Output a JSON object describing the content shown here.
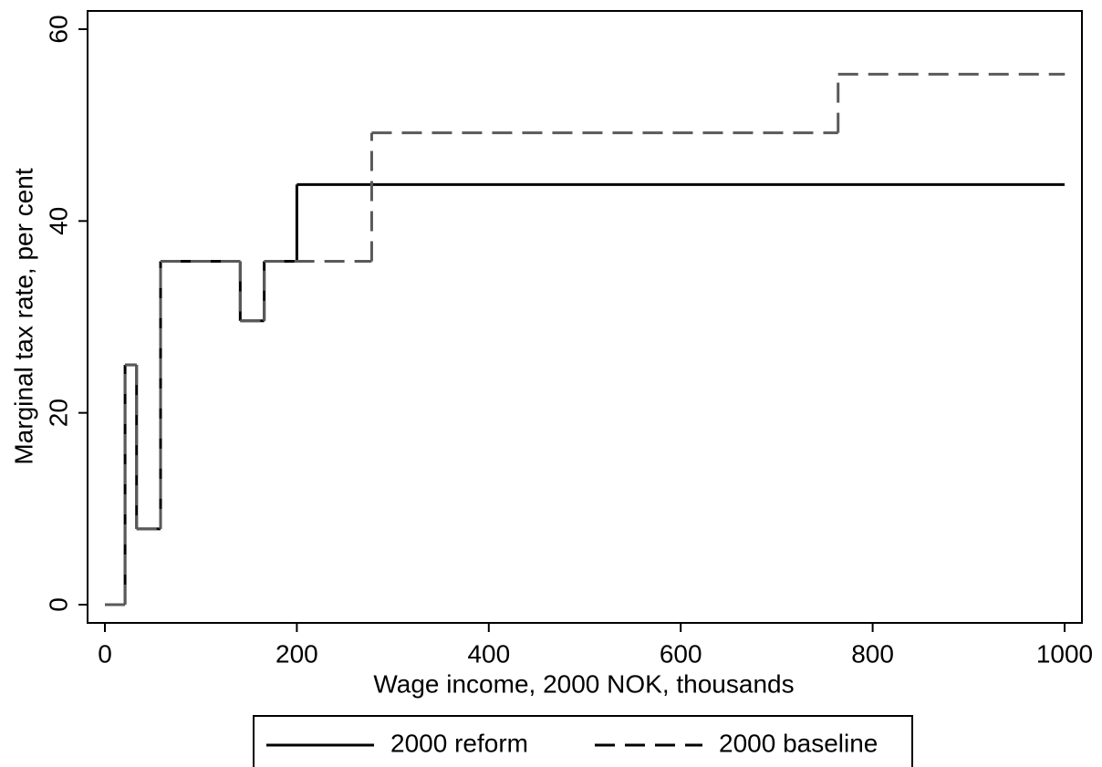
{
  "chart_data": {
    "type": "line",
    "step": "post",
    "x_label": "Wage income, 2000 NOK, thousands",
    "y_label": "Marginal tax rate, per cent",
    "xlim": [
      0,
      1000
    ],
    "xticks": [
      0,
      200,
      400,
      600,
      800,
      1000
    ],
    "ylim": [
      0,
      60
    ],
    "yticks": [
      0,
      20,
      40,
      60
    ],
    "series": [
      {
        "name": "2000 reform",
        "color": "#000000",
        "dash": "solid",
        "x": [
          0,
          21,
          33,
          58,
          141,
          166,
          200,
          1000
        ],
        "values": [
          0,
          25,
          7.9,
          35.8,
          29.6,
          35.8,
          43.8,
          43.8
        ]
      },
      {
        "name": "2000 baseline",
        "color": "#595959",
        "dash": "dashed",
        "x": [
          0,
          21,
          33,
          58,
          141,
          166,
          278,
          764,
          1000
        ],
        "values": [
          0,
          25,
          7.9,
          35.8,
          29.6,
          35.8,
          49.2,
          55.3,
          55.3
        ]
      }
    ]
  }
}
